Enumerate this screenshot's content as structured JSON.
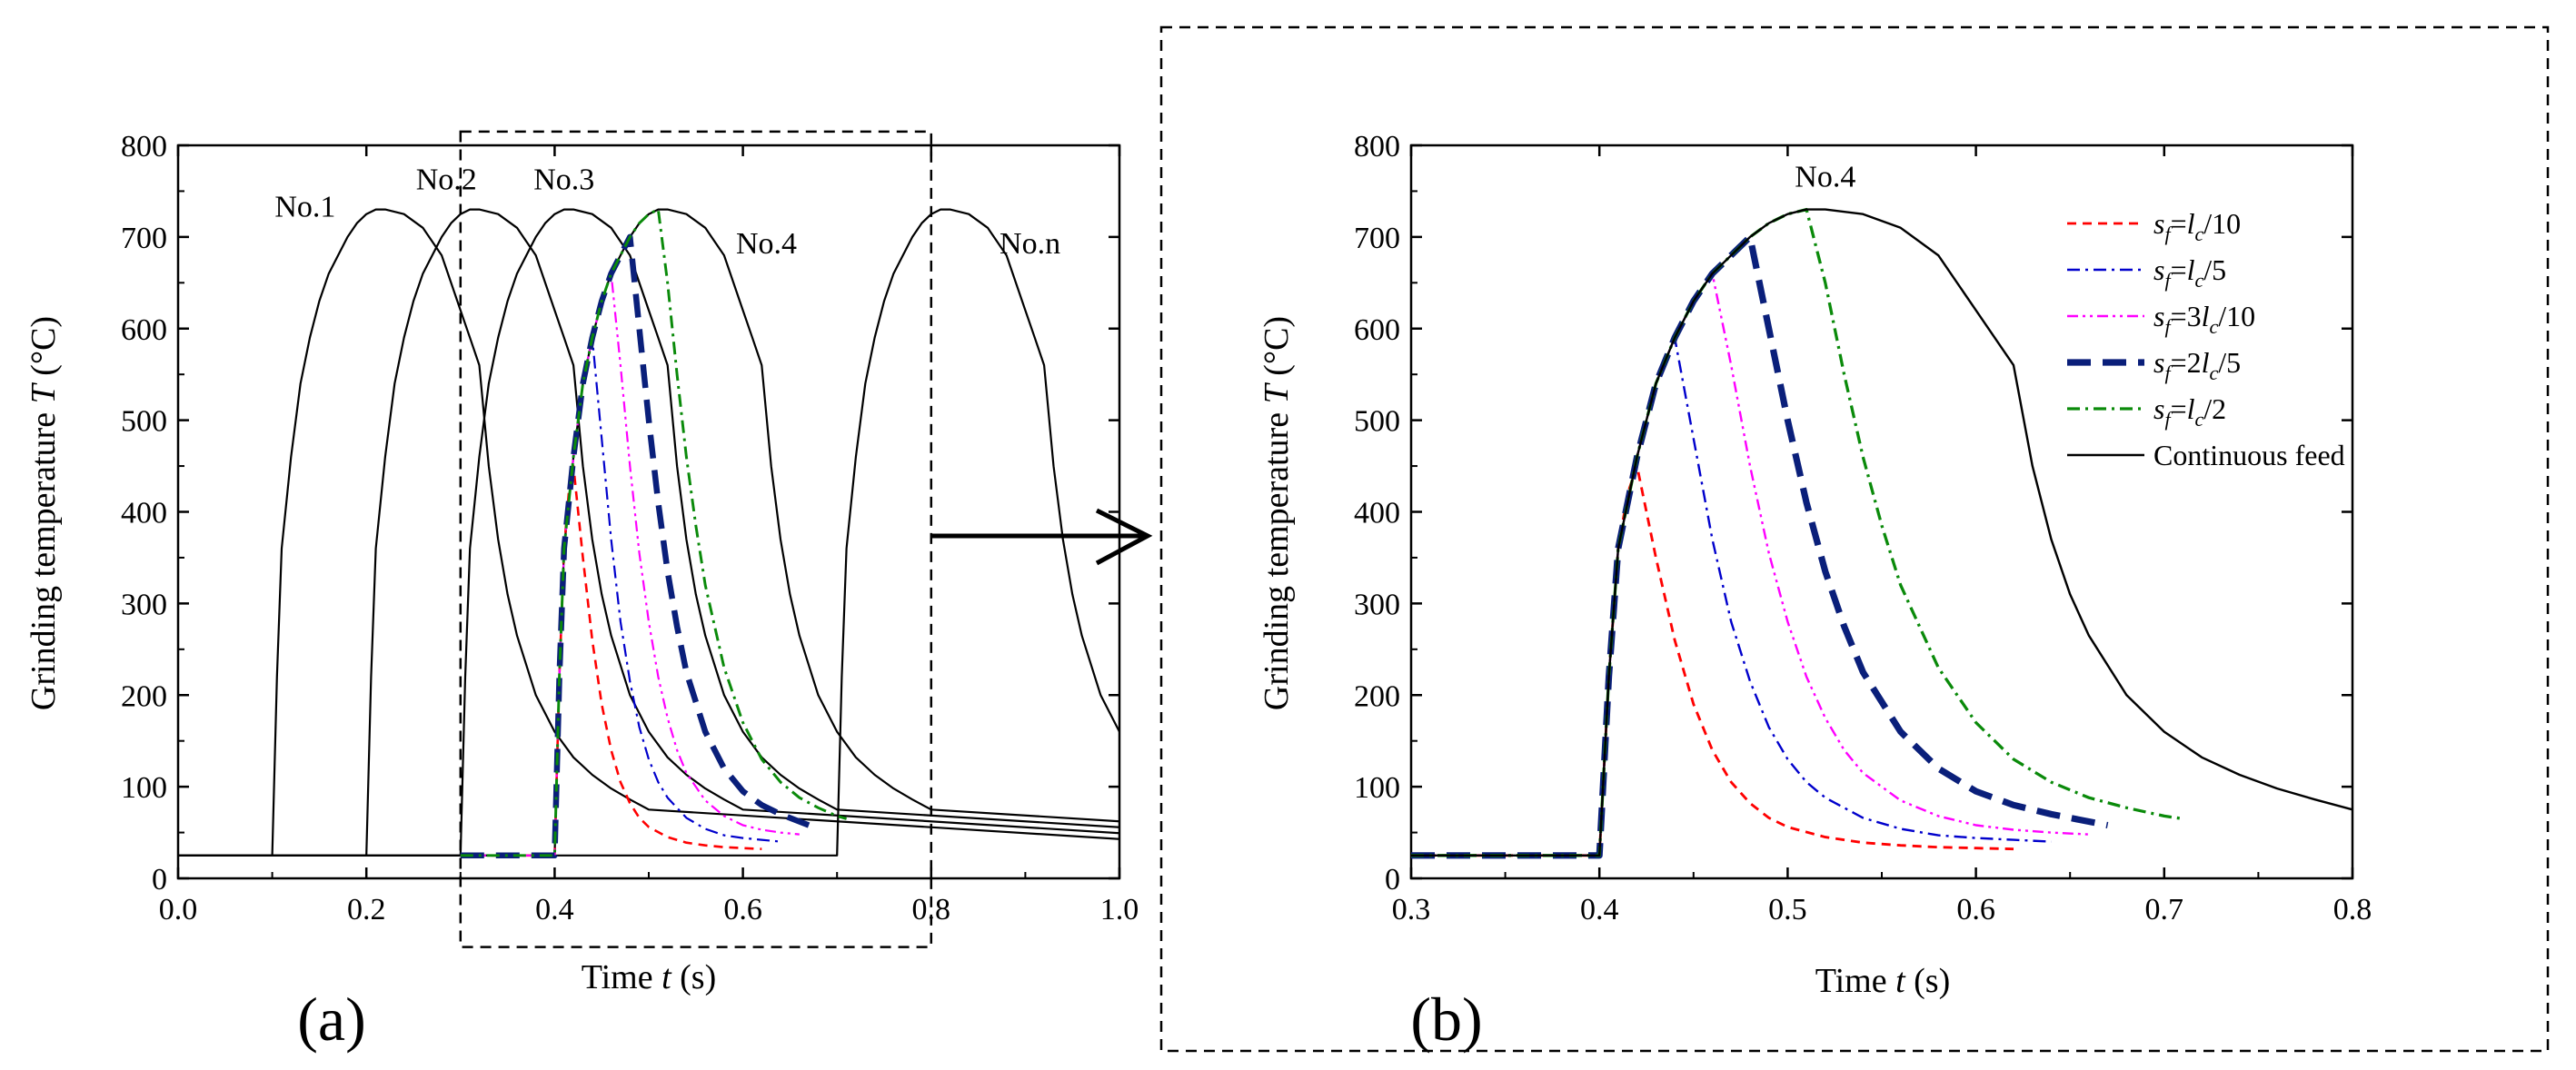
{
  "chart_data": [
    {
      "panel": "a",
      "panel_label": "(a)",
      "type": "line",
      "xlabel_prefix": "Time ",
      "xlabel_var": "t",
      "xlabel_suffix": " (s)",
      "ylabel_prefix": "Grinding temperature ",
      "ylabel_var": "T",
      "ylabel_suffix": " (°C)",
      "xlim": [
        0.0,
        1.0
      ],
      "ylim": [
        0,
        800
      ],
      "xticks": [
        0.0,
        0.2,
        0.4,
        0.6,
        0.8,
        1.0
      ],
      "xtick_labels": [
        "0.0",
        "0.2",
        "0.4",
        "0.6",
        "0.8",
        "1.0"
      ],
      "yticks": [
        0,
        100,
        200,
        300,
        400,
        500,
        600,
        700,
        800
      ],
      "ytick_labels": [
        "0",
        "100",
        "200",
        "300",
        "400",
        "500",
        "600",
        "700",
        "800"
      ],
      "annotations": [
        {
          "text": "No.1",
          "x": 0.135,
          "y": 722
        },
        {
          "text": "No.2",
          "x": 0.285,
          "y": 752
        },
        {
          "text": "No.3",
          "x": 0.41,
          "y": 752
        },
        {
          "text": "No.4",
          "x": 0.625,
          "y": 682
        },
        {
          "text": "No.n",
          "x": 0.905,
          "y": 682
        }
      ],
      "zoom_box": {
        "x": [
          0.3,
          0.8
        ],
        "y": [
          -75,
          815
        ]
      },
      "continuous_pulses": [
        {
          "name": "No.1",
          "start": 0.1
        },
        {
          "name": "No.2",
          "start": 0.2
        },
        {
          "name": "No.3",
          "start": 0.3
        },
        {
          "name": "No.4",
          "start": 0.4
        },
        {
          "name": "No.n",
          "start": 0.7
        }
      ],
      "series_refs": [
        "sf_lc10",
        "sf_lc5",
        "sf_3lc10",
        "sf_2lc5",
        "sf_lc2"
      ]
    },
    {
      "panel": "b",
      "panel_label": "(b)",
      "type": "line",
      "xlabel_prefix": "Time ",
      "xlabel_var": "t",
      "xlabel_suffix": " (s)",
      "ylabel_prefix": "Grinding temperature ",
      "ylabel_var": "T",
      "ylabel_suffix": " (°C)",
      "xlim": [
        0.3,
        0.8
      ],
      "ylim": [
        0,
        800
      ],
      "xticks": [
        0.3,
        0.4,
        0.5,
        0.6,
        0.7,
        0.8
      ],
      "xtick_labels": [
        "0.3",
        "0.4",
        "0.5",
        "0.6",
        "0.7",
        "0.8"
      ],
      "yticks": [
        0,
        100,
        200,
        300,
        400,
        500,
        600,
        700,
        800
      ],
      "ytick_labels": [
        "0",
        "100",
        "200",
        "300",
        "400",
        "500",
        "600",
        "700",
        "800"
      ],
      "annotations": [
        {
          "text": "No.4",
          "x": 0.52,
          "y": 755
        }
      ],
      "legend_position": "top-right",
      "series_refs": [
        "sf_lc10",
        "sf_lc5",
        "sf_3lc10",
        "sf_2lc5",
        "sf_lc2",
        "continuous"
      ]
    }
  ],
  "series": [
    {
      "id": "sf_lc10",
      "color": "#ff0000",
      "style": "dashed",
      "legend": {
        "p1": "s",
        "s1": "f",
        "p2": "=",
        "p3": "l",
        "s2": "c",
        "p4": "/10"
      },
      "points": [
        [
          0.3,
          25
        ],
        [
          0.4,
          25
        ],
        [
          0.405,
          220
        ],
        [
          0.41,
          360
        ],
        [
          0.415,
          420
        ],
        [
          0.42,
          450
        ],
        [
          0.43,
          350
        ],
        [
          0.44,
          260
        ],
        [
          0.45,
          190
        ],
        [
          0.46,
          140
        ],
        [
          0.47,
          105
        ],
        [
          0.48,
          82
        ],
        [
          0.49,
          66
        ],
        [
          0.5,
          56
        ],
        [
          0.52,
          45
        ],
        [
          0.54,
          39
        ],
        [
          0.56,
          36
        ],
        [
          0.58,
          34
        ],
        [
          0.6,
          33
        ],
        [
          0.62,
          32
        ]
      ]
    },
    {
      "id": "sf_lc5",
      "color": "#0000cc",
      "style": "dashdot",
      "legend": {
        "p1": "s",
        "s1": "f",
        "p2": "=",
        "p3": "l",
        "s2": "c",
        "p4": "/5"
      },
      "points": [
        [
          0.3,
          25
        ],
        [
          0.4,
          25
        ],
        [
          0.405,
          220
        ],
        [
          0.41,
          360
        ],
        [
          0.42,
          460
        ],
        [
          0.43,
          540
        ],
        [
          0.44,
          590
        ],
        [
          0.45,
          480
        ],
        [
          0.46,
          370
        ],
        [
          0.47,
          280
        ],
        [
          0.48,
          215
        ],
        [
          0.49,
          165
        ],
        [
          0.5,
          130
        ],
        [
          0.51,
          105
        ],
        [
          0.52,
          88
        ],
        [
          0.54,
          66
        ],
        [
          0.56,
          54
        ],
        [
          0.58,
          47
        ],
        [
          0.6,
          44
        ],
        [
          0.62,
          42
        ],
        [
          0.64,
          40
        ]
      ]
    },
    {
      "id": "sf_3lc10",
      "color": "#ff00ff",
      "style": "dashdotdot",
      "legend": {
        "p1": "s",
        "s1": "f",
        "p2": "=3",
        "p3": "l",
        "s2": "c",
        "p4": "/10"
      },
      "points": [
        [
          0.3,
          25
        ],
        [
          0.4,
          25
        ],
        [
          0.405,
          220
        ],
        [
          0.41,
          360
        ],
        [
          0.42,
          460
        ],
        [
          0.43,
          540
        ],
        [
          0.44,
          590
        ],
        [
          0.45,
          630
        ],
        [
          0.46,
          660
        ],
        [
          0.47,
          560
        ],
        [
          0.48,
          450
        ],
        [
          0.49,
          355
        ],
        [
          0.5,
          280
        ],
        [
          0.51,
          220
        ],
        [
          0.52,
          175
        ],
        [
          0.53,
          140
        ],
        [
          0.54,
          115
        ],
        [
          0.56,
          85
        ],
        [
          0.58,
          68
        ],
        [
          0.6,
          58
        ],
        [
          0.62,
          53
        ],
        [
          0.64,
          50
        ],
        [
          0.66,
          48
        ]
      ]
    },
    {
      "id": "sf_2lc5",
      "color": "#0a1f7a",
      "style": "longdash",
      "legend": {
        "p1": "s",
        "s1": "f",
        "p2": "=2",
        "p3": "l",
        "s2": "c",
        "p4": "/5"
      },
      "points": [
        [
          0.3,
          25
        ],
        [
          0.4,
          25
        ],
        [
          0.405,
          220
        ],
        [
          0.41,
          360
        ],
        [
          0.42,
          460
        ],
        [
          0.43,
          540
        ],
        [
          0.44,
          590
        ],
        [
          0.45,
          630
        ],
        [
          0.46,
          660
        ],
        [
          0.47,
          680
        ],
        [
          0.48,
          700
        ],
        [
          0.49,
          600
        ],
        [
          0.5,
          500
        ],
        [
          0.51,
          410
        ],
        [
          0.52,
          335
        ],
        [
          0.53,
          275
        ],
        [
          0.54,
          225
        ],
        [
          0.56,
          160
        ],
        [
          0.58,
          120
        ],
        [
          0.6,
          95
        ],
        [
          0.62,
          80
        ],
        [
          0.64,
          70
        ],
        [
          0.66,
          62
        ],
        [
          0.67,
          58
        ]
      ]
    },
    {
      "id": "sf_lc2",
      "color": "#0a8a0a",
      "style": "dashdot",
      "legend": {
        "p1": "s",
        "s1": "f",
        "p2": "=",
        "p3": "l",
        "s2": "c",
        "p4": "/2"
      },
      "points": [
        [
          0.3,
          25
        ],
        [
          0.4,
          25
        ],
        [
          0.405,
          220
        ],
        [
          0.41,
          360
        ],
        [
          0.42,
          460
        ],
        [
          0.43,
          540
        ],
        [
          0.44,
          590
        ],
        [
          0.45,
          630
        ],
        [
          0.46,
          660
        ],
        [
          0.47,
          680
        ],
        [
          0.48,
          700
        ],
        [
          0.49,
          715
        ],
        [
          0.5,
          725
        ],
        [
          0.51,
          730
        ],
        [
          0.52,
          650
        ],
        [
          0.53,
          550
        ],
        [
          0.54,
          460
        ],
        [
          0.55,
          385
        ],
        [
          0.56,
          320
        ],
        [
          0.58,
          230
        ],
        [
          0.6,
          170
        ],
        [
          0.62,
          130
        ],
        [
          0.64,
          105
        ],
        [
          0.66,
          88
        ],
        [
          0.68,
          77
        ],
        [
          0.7,
          68
        ],
        [
          0.71,
          65
        ]
      ]
    },
    {
      "id": "continuous",
      "color": "#000000",
      "style": "solid",
      "legend": {
        "text": "Continuous feed"
      },
      "points": [
        [
          0.3,
          25
        ],
        [
          0.4,
          25
        ],
        [
          0.405,
          220
        ],
        [
          0.41,
          360
        ],
        [
          0.42,
          460
        ],
        [
          0.43,
          540
        ],
        [
          0.44,
          590
        ],
        [
          0.45,
          630
        ],
        [
          0.46,
          660
        ],
        [
          0.47,
          680
        ],
        [
          0.48,
          700
        ],
        [
          0.49,
          715
        ],
        [
          0.5,
          725
        ],
        [
          0.51,
          730
        ],
        [
          0.52,
          730
        ],
        [
          0.54,
          725
        ],
        [
          0.56,
          710
        ],
        [
          0.58,
          680
        ],
        [
          0.6,
          620
        ],
        [
          0.61,
          590
        ],
        [
          0.62,
          560
        ],
        [
          0.63,
          450
        ],
        [
          0.64,
          370
        ],
        [
          0.65,
          310
        ],
        [
          0.66,
          265
        ],
        [
          0.68,
          200
        ],
        [
          0.7,
          160
        ],
        [
          0.72,
          132
        ],
        [
          0.74,
          113
        ],
        [
          0.76,
          98
        ],
        [
          0.78,
          86
        ],
        [
          0.8,
          75
        ]
      ]
    }
  ]
}
